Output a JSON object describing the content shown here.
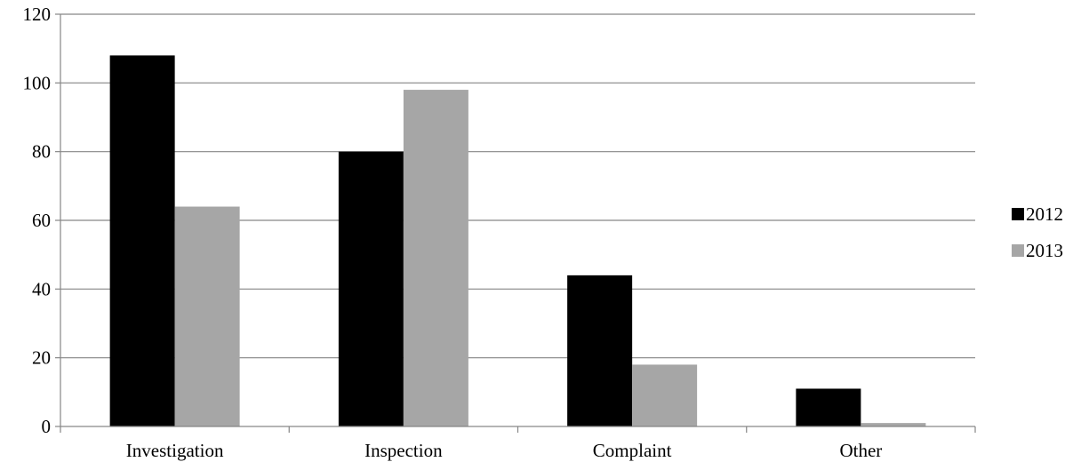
{
  "chart_data": {
    "type": "bar",
    "title": "",
    "xlabel": "",
    "ylabel": "",
    "categories": [
      "Investigation",
      "Inspection",
      "Complaint",
      "Other"
    ],
    "series": [
      {
        "name": "2012",
        "values": [
          108,
          80,
          44,
          11
        ],
        "color": "#000000"
      },
      {
        "name": "2013",
        "values": [
          64,
          98,
          18,
          1
        ],
        "color": "#a6a6a6"
      }
    ],
    "ylim": [
      0,
      120
    ],
    "yticks": [
      0,
      20,
      40,
      60,
      80,
      100,
      120
    ],
    "grid": true,
    "gridline_color": "#868686",
    "legend_position": "right"
  }
}
